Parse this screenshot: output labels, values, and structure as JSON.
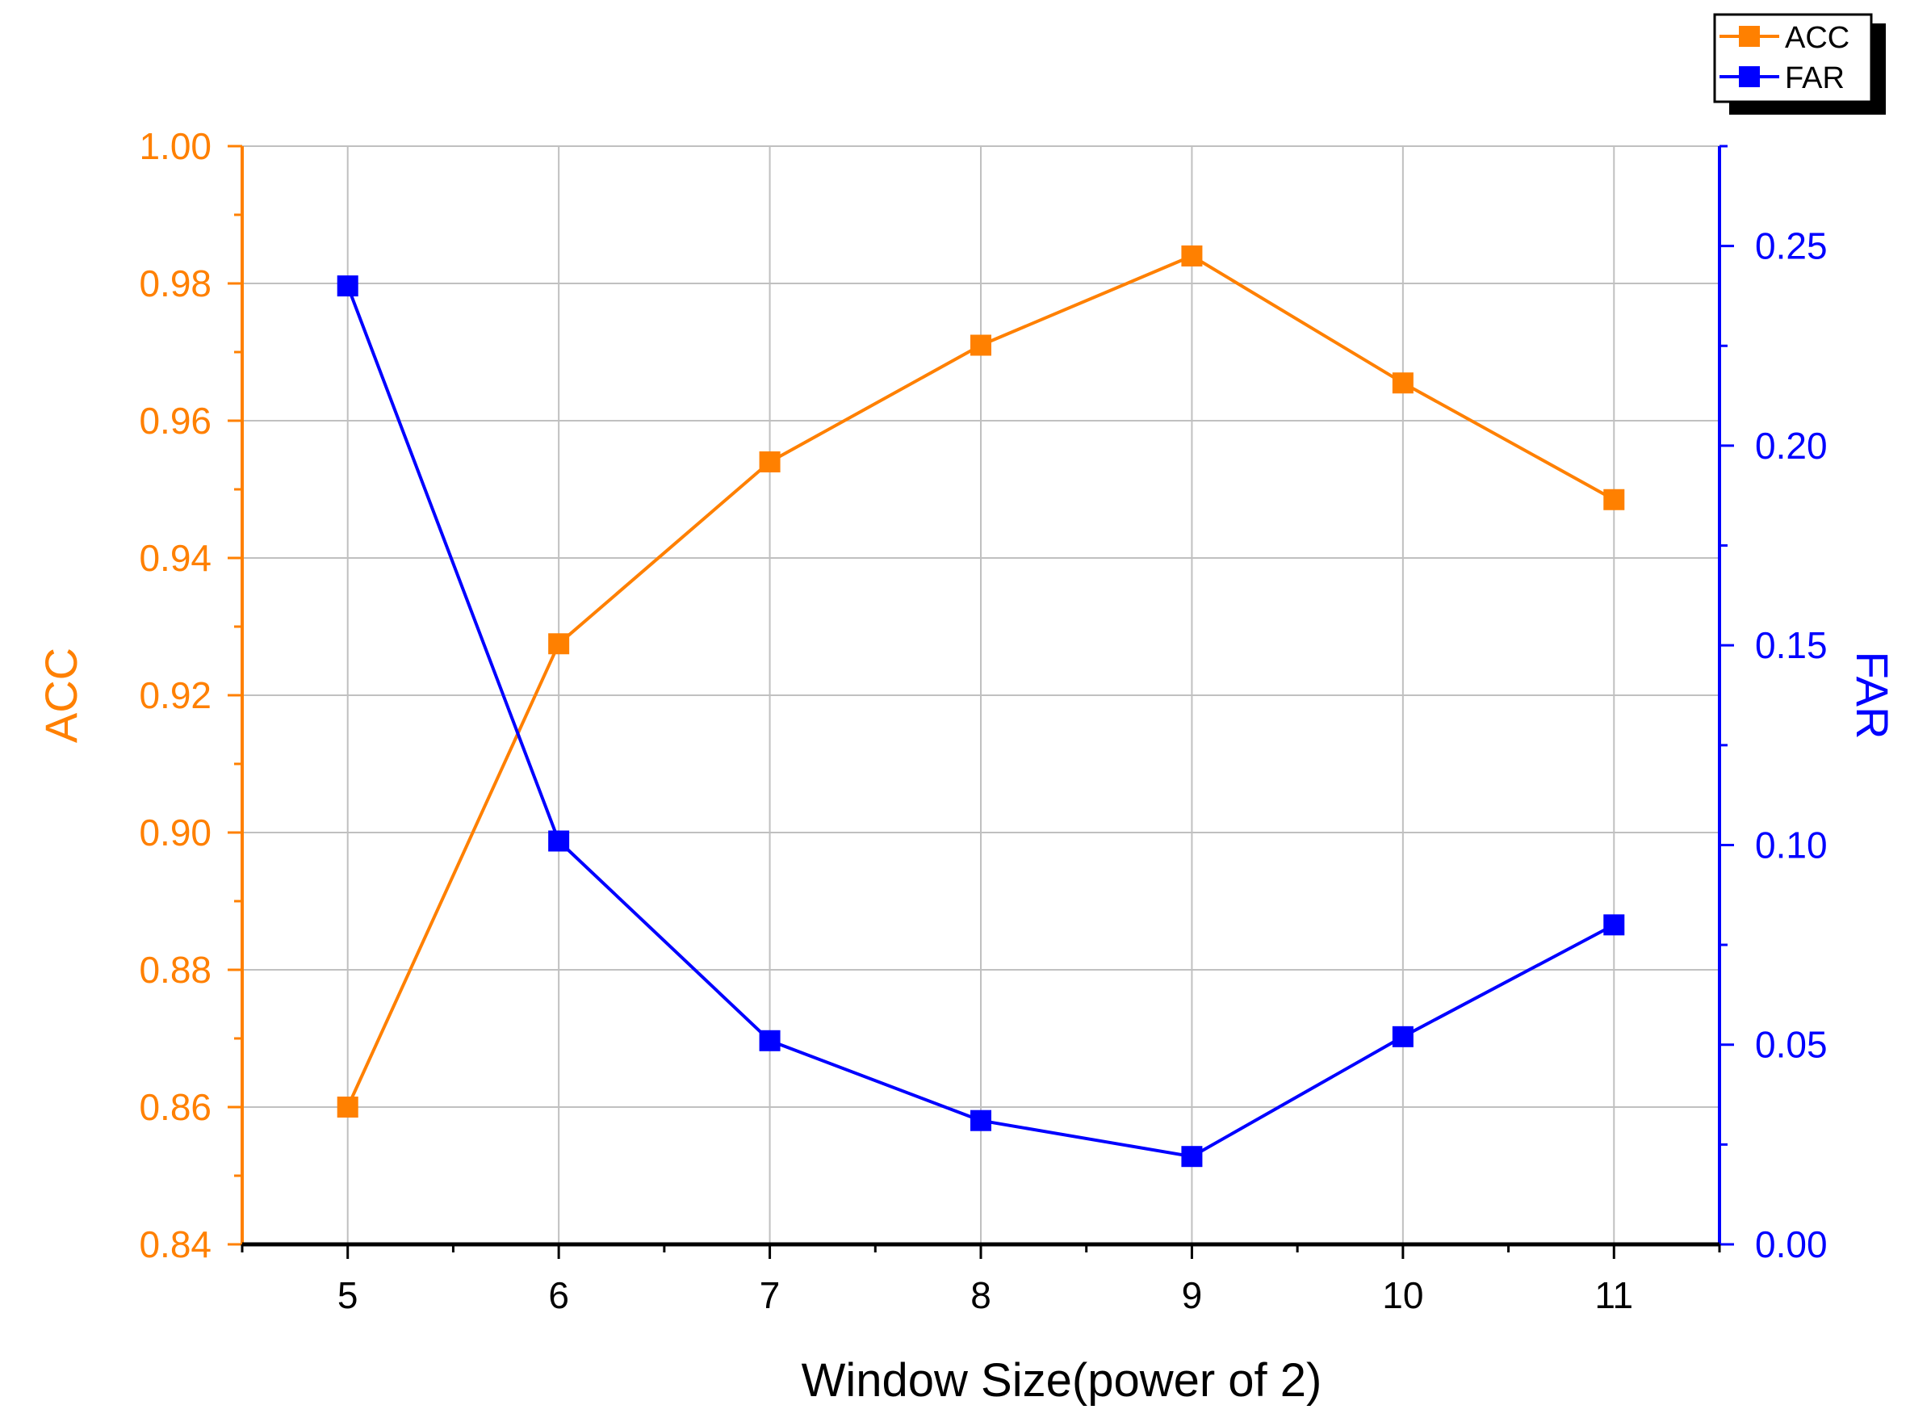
{
  "chart_data": {
    "type": "line",
    "title": "",
    "xlabel": "Window Size(power of 2)",
    "ylabel_left": "ACC",
    "ylabel_right": "FAR",
    "x": [
      5,
      6,
      7,
      8,
      9,
      10,
      11
    ],
    "x_tick_labels": [
      "5",
      "6",
      "7",
      "8",
      "9",
      "10",
      "11"
    ],
    "xlim": [
      4.5,
      11.5
    ],
    "ylim_left": [
      0.84,
      1.0
    ],
    "ylim_right": [
      0.0,
      0.275
    ],
    "y_left_ticks": [
      "0.84",
      "0.86",
      "0.88",
      "0.90",
      "0.92",
      "0.94",
      "0.96",
      "0.98",
      "1.00"
    ],
    "y_right_ticks": [
      "0.00",
      "0.05",
      "0.10",
      "0.15",
      "0.20",
      "0.25"
    ],
    "grid": true,
    "legend_position": "top-right",
    "series": [
      {
        "name": "ACC",
        "axis": "left",
        "color": "#ff8000",
        "marker": "square",
        "values": [
          0.86,
          0.9275,
          0.954,
          0.971,
          0.984,
          0.9655,
          0.9485
        ]
      },
      {
        "name": "FAR",
        "axis": "right",
        "color": "#0000ff",
        "marker": "square",
        "values": [
          0.24,
          0.101,
          0.051,
          0.031,
          0.022,
          0.052,
          0.08
        ]
      }
    ]
  }
}
